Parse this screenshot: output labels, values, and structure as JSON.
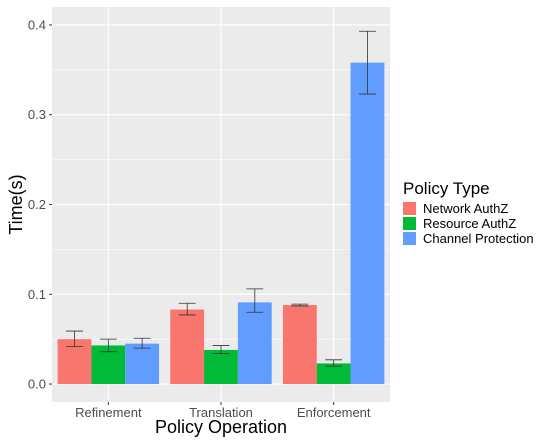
{
  "chart_data": {
    "type": "bar",
    "xlabel": "Policy Operation",
    "ylabel": "Time(s)",
    "ylim": [
      -0.02,
      0.42
    ],
    "yticks": [
      0.0,
      0.1,
      0.2,
      0.3,
      0.4
    ],
    "ytick_labels": [
      "0.0",
      "0.1",
      "0.2",
      "0.3",
      "0.4"
    ],
    "categories": [
      "Refinement",
      "Translation",
      "Enforcement"
    ],
    "series": [
      {
        "name": "Network AuthZ",
        "color": "#F8766D",
        "values": [
          0.05,
          0.083,
          0.088
        ],
        "error_low": [
          0.042,
          0.077,
          0.087
        ],
        "error_high": [
          0.059,
          0.09,
          0.089
        ]
      },
      {
        "name": "Resource AuthZ",
        "color": "#00BA38",
        "values": [
          0.043,
          0.038,
          0.023
        ],
        "error_low": [
          0.036,
          0.034,
          0.02
        ],
        "error_high": [
          0.05,
          0.043,
          0.027
        ]
      },
      {
        "name": "Channel Protection",
        "color": "#619CFF",
        "values": [
          0.045,
          0.091,
          0.358
        ],
        "error_low": [
          0.04,
          0.08,
          0.323
        ],
        "error_high": [
          0.051,
          0.106,
          0.393
        ]
      }
    ],
    "legend_title": "Policy Type",
    "legend_position": "right",
    "panel_background": "#EBEBEB",
    "grid": true
  }
}
